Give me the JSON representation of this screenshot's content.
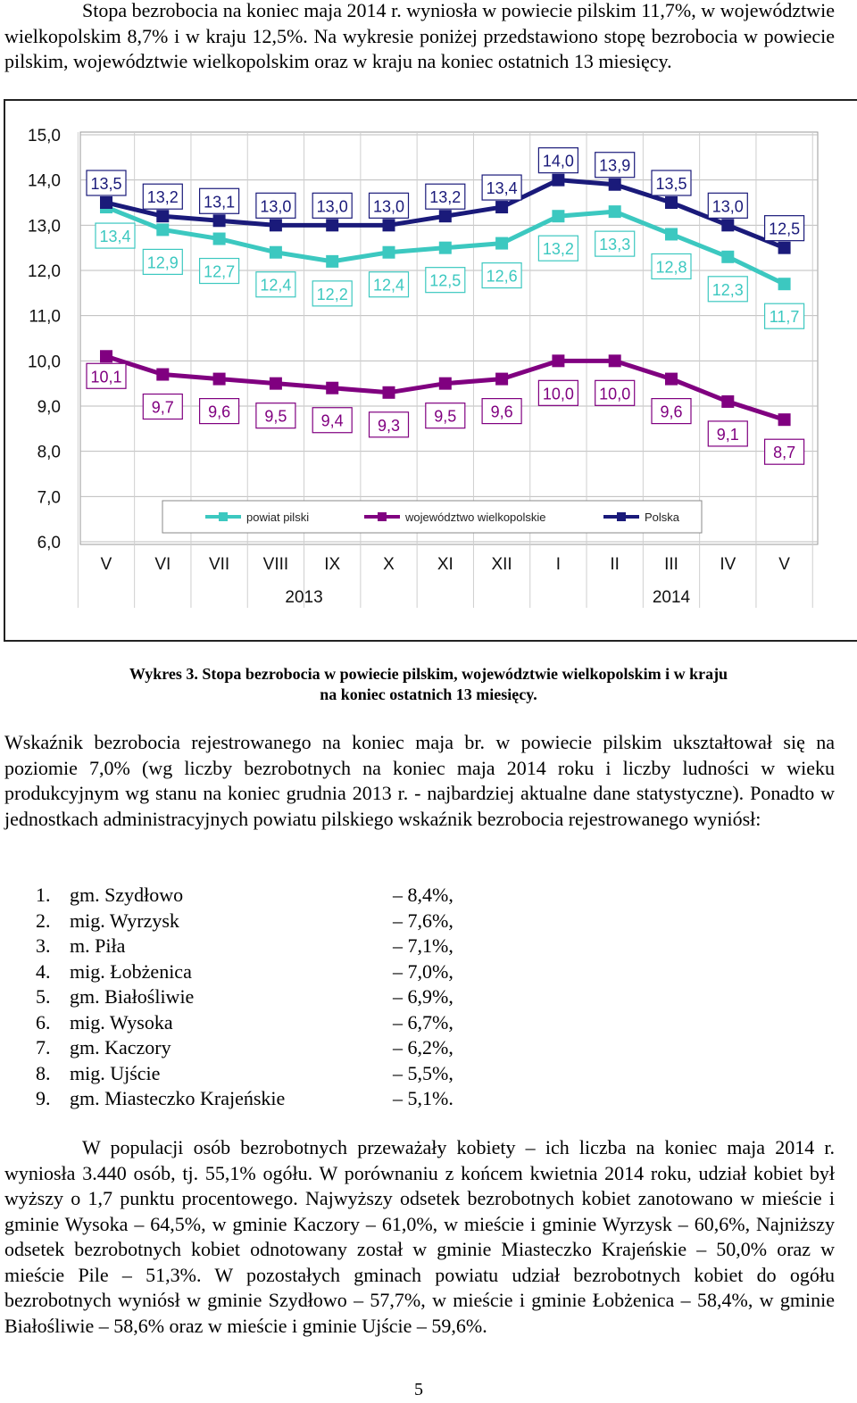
{
  "intro_paragraph": "Stopa bezrobocia na koniec maja 2014 r. wyniosła w powiecie pilskim 11,7%, w województwie wielkopolskim 8,7% i w kraju 12,5%. Na wykresie poniżej przedstawiono stopę bezrobocia w powiecie pilskim, województwie wielkopolskim oraz w kraju na koniec ostatnich 13 miesięcy.",
  "chart_data": {
    "type": "line",
    "title": "",
    "xlabel": "",
    "ylabel": "",
    "categories": [
      "V",
      "VI",
      "VII",
      "VIII",
      "IX",
      "X",
      "XI",
      "XII",
      "I",
      "II",
      "III",
      "IV",
      "V"
    ],
    "year_labels": [
      "2013",
      "2014"
    ],
    "y_ticks": [
      "15,0",
      "14,0",
      "13,0",
      "12,0",
      "11,0",
      "10,0",
      "9,0",
      "8,0",
      "7,0",
      "6,0"
    ],
    "ylim": [
      6,
      15
    ],
    "grid": true,
    "legend_position": "bottom",
    "series": [
      {
        "name": "powiat pilski",
        "color": "#3cc8c0",
        "values": [
          13.4,
          12.9,
          12.7,
          12.4,
          12.2,
          12.4,
          12.5,
          12.6,
          13.2,
          13.3,
          12.8,
          12.3,
          11.7
        ],
        "labels": [
          "13,4",
          "12,9",
          "12,7",
          "12,4",
          "12,2",
          "12,4",
          "12,5",
          "12,6",
          "13,2",
          "13,3",
          "12,8",
          "12,3",
          "11,7"
        ]
      },
      {
        "name": "województwo wielkopolskie",
        "color": "#800080",
        "values": [
          10.1,
          9.7,
          9.6,
          9.5,
          9.4,
          9.3,
          9.5,
          9.6,
          10.0,
          10.0,
          9.6,
          9.1,
          8.7
        ],
        "labels": [
          "10,1",
          "9,7",
          "9,6",
          "9,5",
          "9,4",
          "9,3",
          "9,5",
          "9,6",
          "10,0",
          "10,0",
          "9,6",
          "9,1",
          "8,7"
        ]
      },
      {
        "name": "Polska",
        "color": "#1a1a7a",
        "values": [
          13.5,
          13.2,
          13.1,
          13.0,
          13.0,
          13.0,
          13.2,
          13.4,
          14.0,
          13.9,
          13.5,
          13.0,
          12.5
        ],
        "labels": [
          "13,5",
          "13,2",
          "13,1",
          "13,0",
          "13,0",
          "13,0",
          "13,2",
          "13,4",
          "14,0",
          "13,9",
          "13,5",
          "13,0",
          "12,5"
        ]
      }
    ]
  },
  "caption": {
    "line1": "Wykres 3. Stopa bezrobocia w powiecie pilskim, województwie wielkopolskim i w kraju",
    "line2": "na koniec ostatnich 13 miesięcy."
  },
  "paragraph2": "Wskaźnik bezrobocia rejestrowanego na koniec maja br. w powiecie pilskim ukształtował się na poziomie 7,0% (wg liczby bezrobotnych na koniec maja 2014 roku i liczby ludności w wieku produkcyjnym wg stanu na koniec grudnia 2013 r. - najbardziej aktualne dane statystyczne). Ponadto w jednostkach administracyjnych powiatu pilskiego wskaźnik bezrobocia rejestrowanego wyniósł:",
  "units": [
    {
      "num": "1.",
      "name": "gm. Szydłowo",
      "value": "– 8,4%,"
    },
    {
      "num": "2.",
      "name": "mig. Wyrzysk",
      "value": "– 7,6%,"
    },
    {
      "num": "3.",
      "name": "m. Piła",
      "value": "– 7,1%,"
    },
    {
      "num": "4.",
      "name": "mig. Łobżenica",
      "value": "– 7,0%,"
    },
    {
      "num": "5.",
      "name": "gm. Białośliwie",
      "value": "– 6,9%,"
    },
    {
      "num": "6.",
      "name": "mig. Wysoka",
      "value": "– 6,7%,"
    },
    {
      "num": "7.",
      "name": "gm. Kaczory",
      "value": "– 6,2%,"
    },
    {
      "num": "8.",
      "name": "mig. Ujście",
      "value": "– 5,5%,"
    },
    {
      "num": "9.",
      "name": "gm. Miasteczko Krajeńskie",
      "value": "– 5,1%."
    }
  ],
  "paragraph3": "W populacji osób bezrobotnych przeważały kobiety – ich liczba na koniec maja 2014 r. wyniosła 3.440 osób, tj. 55,1% ogółu. W porównaniu z końcem kwietnia 2014 roku, udział kobiet był wyższy o 1,7 punktu procentowego. Najwyższy odsetek bezrobotnych kobiet zanotowano w mieście i gminie Wysoka – 64,5%, w gminie Kaczory – 61,0%, w mieście i gminie Wyrzysk – 60,6%, Najniższy odsetek bezrobotnych kobiet odnotowany został w gminie Miasteczko Krajeńskie – 50,0% oraz w mieście Pile – 51,3%. W pozostałych gminach powiatu udział bezrobotnych kobiet do ogółu bezrobotnych wyniósł w gminie Szydłowo – 57,7%, w mieście i gminie Łobżenica – 58,4%, w gminie Białośliwie – 58,6% oraz w mieście i gminie Ujście – 59,6%.",
  "page_number": "5"
}
